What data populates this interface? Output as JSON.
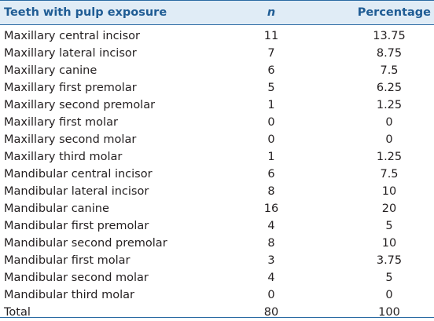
{
  "table": {
    "headers": {
      "teeth": "Teeth with pulp exposure",
      "n": "n",
      "percentage": "Percentage"
    },
    "rows": [
      {
        "teeth": "Maxillary central incisor",
        "n": "11",
        "percentage": "13.75"
      },
      {
        "teeth": "Maxillary lateral incisor",
        "n": "7",
        "percentage": "8.75"
      },
      {
        "teeth": "Maxillary canine",
        "n": "6",
        "percentage": "7.5"
      },
      {
        "teeth": "Maxillary first premolar",
        "n": "5",
        "percentage": "6.25"
      },
      {
        "teeth": "Maxillary second premolar",
        "n": "1",
        "percentage": "1.25"
      },
      {
        "teeth": "Maxillary first molar",
        "n": "0",
        "percentage": "0"
      },
      {
        "teeth": "Maxillary second molar",
        "n": "0",
        "percentage": "0"
      },
      {
        "teeth": "Maxillary third molar",
        "n": "1",
        "percentage": "1.25"
      },
      {
        "teeth": "Mandibular central incisor",
        "n": "6",
        "percentage": "7.5"
      },
      {
        "teeth": "Mandibular lateral incisor",
        "n": "8",
        "percentage": "10"
      },
      {
        "teeth": "Mandibular canine",
        "n": "16",
        "percentage": "20"
      },
      {
        "teeth": "Mandibular first premolar",
        "n": "4",
        "percentage": "5"
      },
      {
        "teeth": "Mandibular second premolar",
        "n": "8",
        "percentage": "10"
      },
      {
        "teeth": "Mandibular first molar",
        "n": "3",
        "percentage": "3.75"
      },
      {
        "teeth": "Mandibular second molar",
        "n": "4",
        "percentage": "5"
      },
      {
        "teeth": "Mandibular third molar",
        "n": "0",
        "percentage": "0"
      },
      {
        "teeth": "Total",
        "n": "80",
        "percentage": "100"
      }
    ]
  },
  "colors": {
    "header_background": "#e0ecf6",
    "header_text": "#1f5c94",
    "rule": "#2a6aa3",
    "body_text": "#231f20"
  }
}
